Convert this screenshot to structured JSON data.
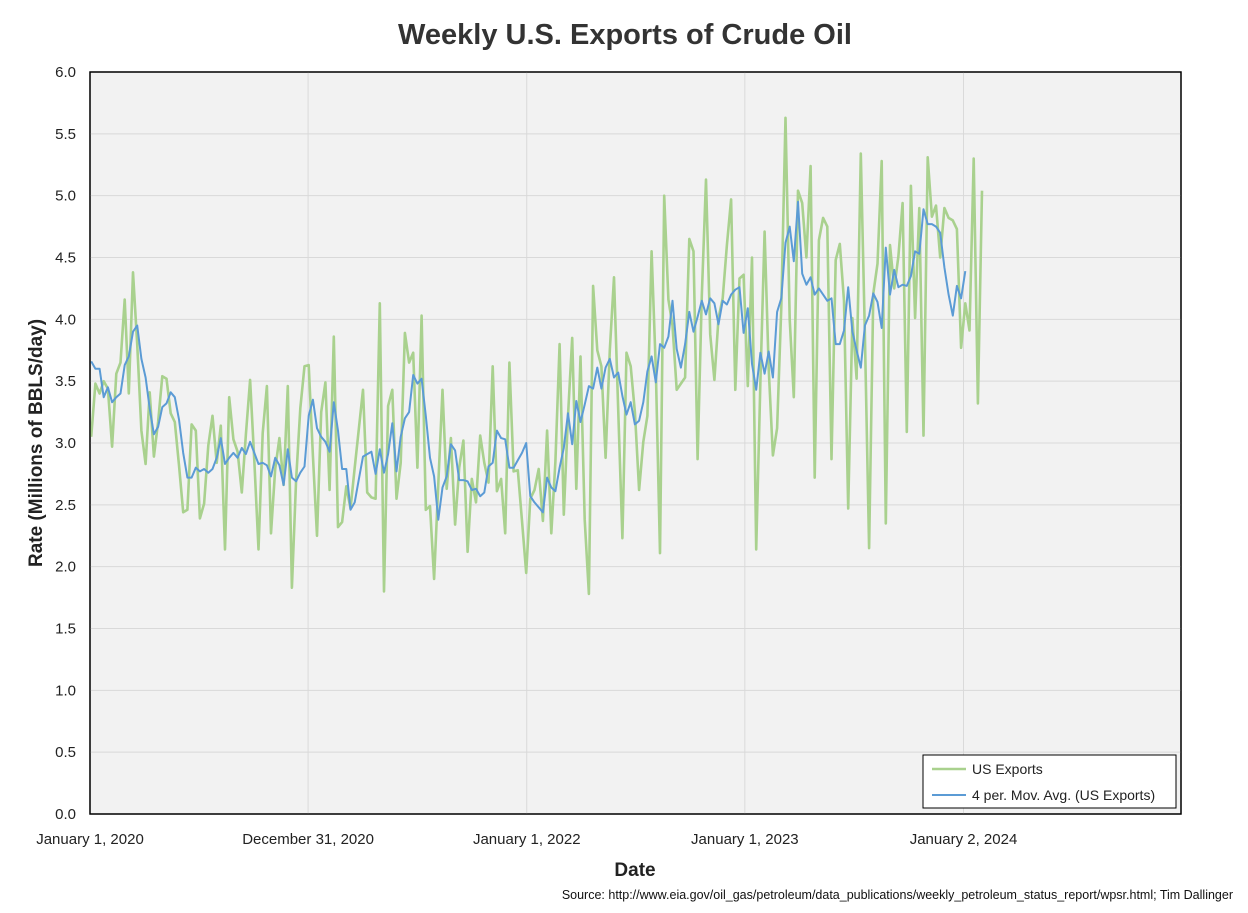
{
  "chart_data": {
    "type": "line",
    "title": "Weekly U.S. Exports of Crude Oil",
    "xlabel": "Date",
    "ylabel": "Rate (Millions of BBLS/day)",
    "source": "Source: http://www.eia.gov/oil_gas/petroleum/data_publications/weekly_petroleum_status_report/wpsr.html; Tim Dallinger",
    "x_range": [
      "2020-01-01",
      "2024-12-31"
    ],
    "x_ticks": [
      {
        "date": "2020-01-01",
        "label": "January 1, 2020"
      },
      {
        "date": "2020-12-31",
        "label": "December 31, 2020"
      },
      {
        "date": "2022-01-01",
        "label": "January 1, 2022"
      },
      {
        "date": "2023-01-01",
        "label": "January 1, 2023"
      },
      {
        "date": "2024-01-02",
        "label": "January 2, 2024"
      }
    ],
    "ylim": [
      0,
      6
    ],
    "y_ticks": [
      "0.0",
      "0.5",
      "1.0",
      "1.5",
      "2.0",
      "2.5",
      "3.0",
      "3.5",
      "4.0",
      "4.5",
      "5.0",
      "5.5",
      "6.0"
    ],
    "grid": true,
    "legend_position": "bottom-right",
    "background_color": "#f2f2f2",
    "series": [
      {
        "name": "US Exports",
        "color": "#a9d18e",
        "start_date": "2020-01-03",
        "interval_days": 7,
        "values": [
          3.05,
          3.48,
          3.4,
          3.5,
          3.44,
          2.97,
          3.56,
          3.65,
          4.16,
          3.4,
          4.38,
          3.8,
          3.1,
          2.83,
          3.41,
          2.89,
          3.17,
          3.54,
          3.52,
          3.24,
          3.17,
          2.82,
          2.44,
          2.46,
          3.15,
          3.1,
          2.39,
          2.51,
          2.98,
          3.22,
          2.84,
          3.14,
          2.14,
          3.37,
          3.03,
          2.93,
          2.6,
          3.07,
          3.51,
          2.86,
          2.14,
          3.08,
          3.46,
          2.27,
          2.79,
          3.04,
          2.66,
          3.46,
          1.83,
          2.7,
          3.28,
          3.62,
          3.63,
          2.9,
          2.25,
          3.25,
          3.49,
          2.62,
          3.86,
          2.32,
          2.36,
          2.65,
          2.47,
          2.8,
          3.12,
          3.43,
          2.6,
          2.56,
          2.55,
          4.13,
          1.8,
          3.3,
          3.43,
          2.55,
          2.84,
          3.89,
          3.65,
          3.73,
          2.8,
          4.03,
          2.46,
          2.49,
          1.9,
          2.67,
          3.43,
          2.63,
          3.04,
          2.34,
          2.8,
          3.02,
          2.12,
          2.71,
          2.52,
          3.06,
          2.84,
          2.68,
          3.62,
          2.61,
          2.71,
          2.27,
          3.65,
          2.77,
          2.78,
          2.37,
          1.95,
          2.55,
          2.62,
          2.79,
          2.37,
          3.1,
          2.27,
          2.85,
          3.8,
          2.42,
          3.22,
          3.85,
          2.63,
          3.7,
          2.38,
          1.78,
          4.27,
          3.75,
          3.62,
          2.88,
          3.75,
          4.34,
          3.27,
          2.23,
          3.73,
          3.62,
          3.25,
          2.62,
          3.01,
          3.22,
          4.55,
          3.6,
          2.11,
          5.0,
          4.16,
          3.95,
          3.43,
          3.48,
          3.53,
          4.65,
          4.55,
          2.87,
          4.19,
          5.13,
          3.88,
          3.51,
          4.01,
          4.17,
          4.6,
          4.97,
          3.43,
          4.33,
          4.36,
          3.46,
          4.5,
          2.14,
          3.5,
          4.71,
          3.6,
          2.9,
          3.12,
          4.1,
          5.63,
          4.0,
          3.37,
          5.04,
          4.94,
          4.5,
          5.24,
          2.72,
          4.64,
          4.82,
          4.75,
          2.87,
          4.48,
          4.61,
          4.15,
          2.47,
          4.01,
          3.52,
          5.34,
          3.87,
          2.15,
          4.21,
          4.45,
          5.28,
          2.35,
          4.6,
          4.25,
          4.51,
          4.94,
          3.09,
          5.08,
          4.01,
          4.9,
          3.06,
          5.31,
          4.83,
          4.92,
          4.5,
          4.9,
          4.82,
          4.8,
          4.73,
          3.77,
          4.13,
          3.91,
          5.3,
          3.32,
          5.04
        ]
      },
      {
        "name": "4 per. Mov. Avg. (US Exports)",
        "color": "#5b9bd5",
        "start_date": "2020-01-03",
        "interval_days": 7,
        "values": [
          3.66,
          3.6,
          3.6,
          3.37,
          3.45,
          3.33,
          3.37,
          3.4,
          3.63,
          3.7,
          3.9,
          3.95,
          3.68,
          3.53,
          3.28,
          3.07,
          3.13,
          3.29,
          3.32,
          3.41,
          3.37,
          3.19,
          2.92,
          2.72,
          2.72,
          2.8,
          2.77,
          2.79,
          2.76,
          2.79,
          2.88,
          3.04,
          2.83,
          2.88,
          2.92,
          2.88,
          2.96,
          2.91,
          3.01,
          2.92,
          2.83,
          2.84,
          2.82,
          2.73,
          2.88,
          2.82,
          2.66,
          2.95,
          2.72,
          2.69,
          2.76,
          2.81,
          3.22,
          3.35,
          3.12,
          3.05,
          3.01,
          2.93,
          3.33,
          3.1,
          2.79,
          2.79,
          2.46,
          2.52,
          2.71,
          2.89,
          2.91,
          2.93,
          2.75,
          2.95,
          2.76,
          2.91,
          3.16,
          2.77,
          3.05,
          3.2,
          3.25,
          3.55,
          3.48,
          3.52,
          3.22,
          2.88,
          2.73,
          2.38,
          2.64,
          2.73,
          2.99,
          2.94,
          2.7,
          2.7,
          2.69,
          2.62,
          2.63,
          2.57,
          2.6,
          2.81,
          2.84,
          3.1,
          3.04,
          3.03,
          2.8,
          2.8,
          2.86,
          2.92,
          3.0,
          2.57,
          2.52,
          2.48,
          2.44,
          2.72,
          2.64,
          2.61,
          2.8,
          2.96,
          3.24,
          2.99,
          3.34,
          3.17,
          3.31,
          3.46,
          3.44,
          3.61,
          3.44,
          3.61,
          3.68,
          3.53,
          3.57,
          3.38,
          3.23,
          3.33,
          3.15,
          3.18,
          3.33,
          3.58,
          3.7,
          3.49,
          3.8,
          3.77,
          3.86,
          4.15,
          3.76,
          3.61,
          3.8,
          4.06,
          3.9,
          4.02,
          4.15,
          4.04,
          4.17,
          4.13,
          3.96,
          4.15,
          4.12,
          4.2,
          4.24,
          4.26,
          3.89,
          4.09,
          3.64,
          3.43,
          3.73,
          3.56,
          3.74,
          3.53,
          4.06,
          4.17,
          4.62,
          4.75,
          4.47,
          4.95,
          4.37,
          4.28,
          4.34,
          4.2,
          4.25,
          4.2,
          4.15,
          4.17,
          3.8,
          3.8,
          3.91,
          4.26,
          3.9,
          3.75,
          3.61,
          3.95,
          4.03,
          4.21,
          4.14,
          3.93,
          4.58,
          4.2,
          4.4,
          4.26,
          4.28,
          4.27,
          4.35,
          4.55,
          4.53,
          4.89,
          4.77,
          4.77,
          4.75,
          4.7,
          4.42,
          4.2,
          4.03,
          4.27,
          4.17,
          4.39
        ]
      }
    ]
  }
}
